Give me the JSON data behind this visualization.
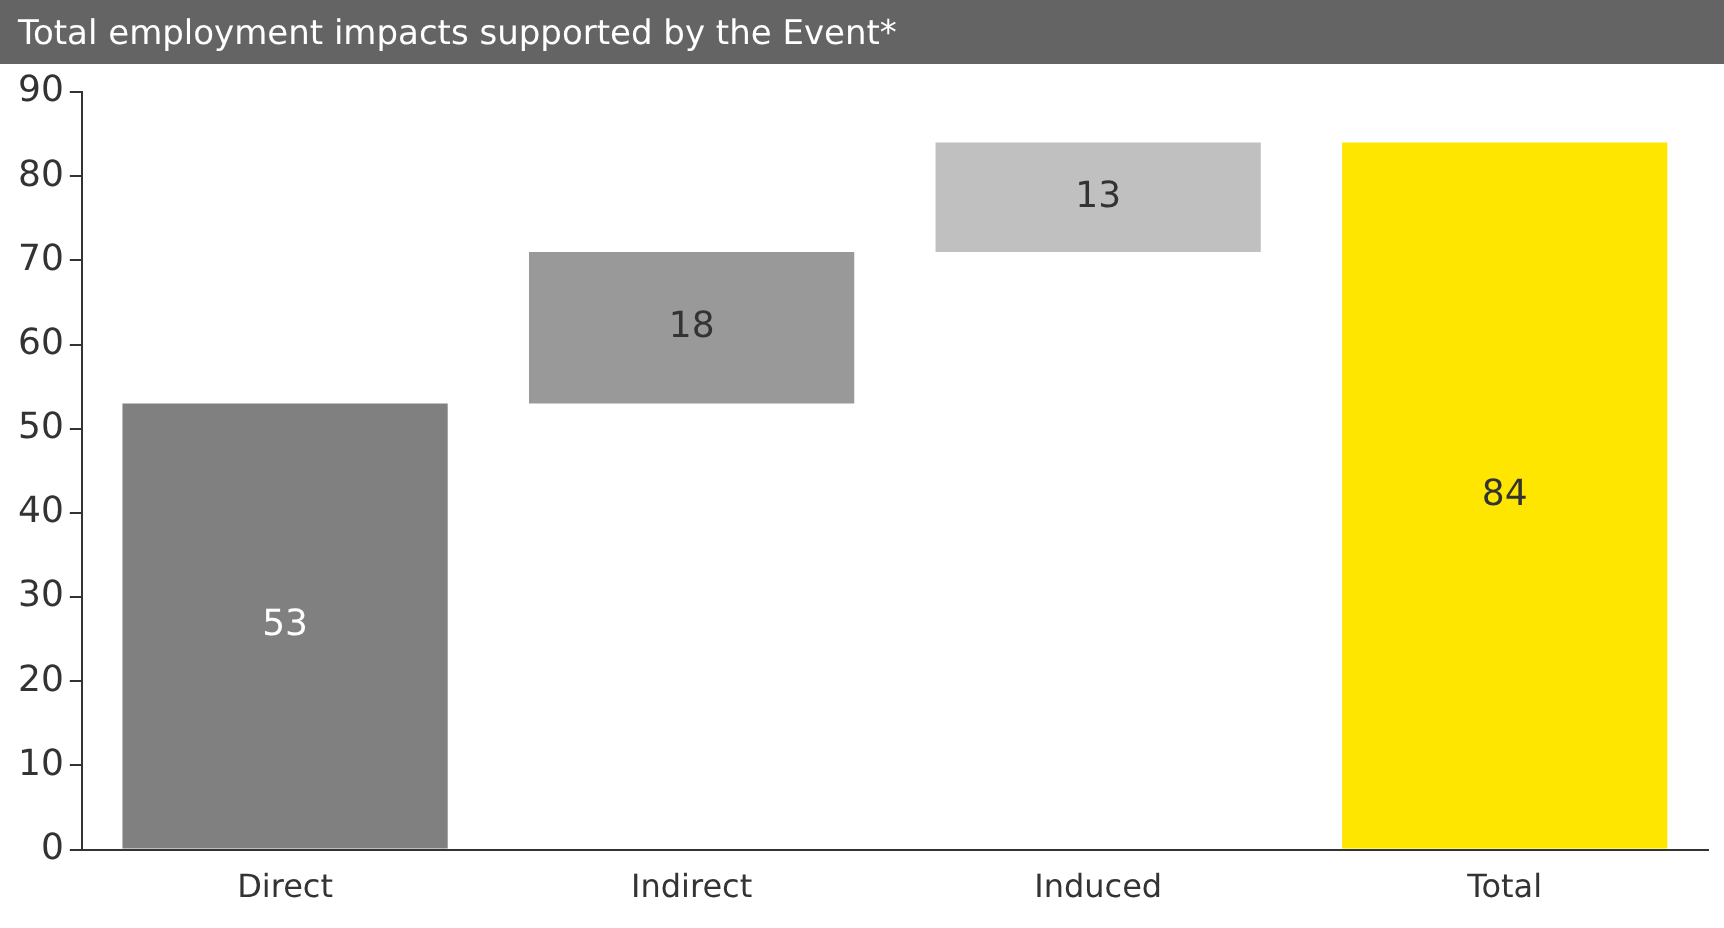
{
  "chart_data": {
    "type": "bar",
    "title": "Total employment impacts supported by the Event*",
    "categories": [
      "Direct",
      "Indirect",
      "Induced",
      "Total"
    ],
    "values": [
      53,
      18,
      13,
      84
    ],
    "base": [
      0,
      53,
      71,
      0
    ],
    "colors": [
      "#808080",
      "#999999",
      "#c0c0c0",
      "#ffe600"
    ],
    "ylim": [
      0,
      90
    ],
    "yticks": [
      0,
      10,
      20,
      30,
      40,
      50,
      60,
      70,
      80,
      90
    ],
    "grid": false,
    "legend": false,
    "data_labels": true
  }
}
